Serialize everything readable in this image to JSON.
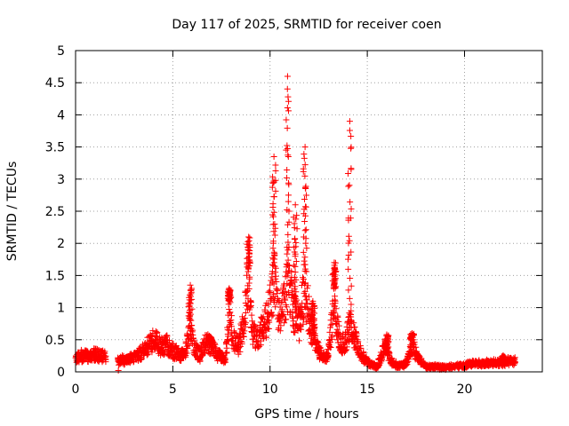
{
  "chart_data": {
    "type": "scatter",
    "title": "Day 117 of 2025, SRMTID for receiver coen",
    "xlabel": "GPS time / hours",
    "ylabel": "SRMTID / TECUs",
    "xlim": [
      0,
      24
    ],
    "ylim": [
      0,
      5
    ],
    "xticks": [
      0,
      5,
      10,
      15,
      20
    ],
    "yticks": [
      0,
      0.5,
      1,
      1.5,
      2,
      2.5,
      3,
      3.5,
      4,
      4.5,
      5
    ],
    "xtick_labels": [
      "0",
      "5",
      "10",
      "15",
      "20"
    ],
    "ytick_labels": [
      "0",
      "0.5",
      "1",
      "1.5",
      "2",
      "2.5",
      "3",
      "3.5",
      "4",
      "4.5",
      "5"
    ],
    "grid": true,
    "marker": "+",
    "series": [
      {
        "name": "SRMTID",
        "color": "#ff0000",
        "envelope": [
          [
            0.0,
            0.25
          ],
          [
            0.2,
            0.28
          ],
          [
            0.5,
            0.3
          ],
          [
            0.8,
            0.28
          ],
          [
            1.0,
            0.32
          ],
          [
            1.3,
            0.3
          ],
          [
            1.5,
            0.28
          ],
          [
            2.2,
            0.2
          ],
          [
            2.5,
            0.22
          ],
          [
            3.0,
            0.25
          ],
          [
            3.4,
            0.35
          ],
          [
            3.8,
            0.5
          ],
          [
            4.1,
            0.6
          ],
          [
            4.4,
            0.45
          ],
          [
            4.7,
            0.5
          ],
          [
            4.9,
            0.4
          ],
          [
            5.2,
            0.35
          ],
          [
            5.6,
            0.28
          ],
          [
            5.9,
            0.8
          ],
          [
            6.1,
            0.45
          ],
          [
            6.4,
            0.3
          ],
          [
            6.7,
            0.55
          ],
          [
            7.0,
            0.45
          ],
          [
            7.4,
            0.3
          ],
          [
            7.7,
            0.2
          ],
          [
            7.9,
            1.1
          ],
          [
            8.1,
            0.6
          ],
          [
            8.4,
            0.5
          ],
          [
            8.6,
            0.8
          ],
          [
            8.9,
            1.6
          ],
          [
            9.1,
            0.7
          ],
          [
            9.3,
            0.6
          ],
          [
            9.6,
            0.8
          ],
          [
            9.9,
            1.05
          ],
          [
            10.2,
            1.7
          ],
          [
            10.5,
            0.95
          ],
          [
            10.8,
            1.3
          ],
          [
            10.95,
            1.8
          ],
          [
            11.2,
            1.1
          ],
          [
            11.5,
            0.85
          ],
          [
            11.8,
            1.6
          ],
          [
            12.1,
            0.8
          ],
          [
            12.4,
            0.45
          ],
          [
            12.7,
            0.25
          ],
          [
            13.0,
            0.3
          ],
          [
            13.3,
            1.3
          ],
          [
            13.6,
            0.5
          ],
          [
            13.9,
            0.55
          ],
          [
            14.1,
            0.85
          ],
          [
            14.4,
            0.6
          ],
          [
            14.7,
            0.3
          ],
          [
            15.1,
            0.15
          ],
          [
            15.5,
            0.1
          ],
          [
            15.9,
            0.45
          ],
          [
            16.2,
            0.2
          ],
          [
            16.6,
            0.1
          ],
          [
            17.0,
            0.15
          ],
          [
            17.3,
            0.5
          ],
          [
            17.6,
            0.25
          ],
          [
            18.0,
            0.1
          ],
          [
            18.5,
            0.1
          ],
          [
            19.0,
            0.08
          ],
          [
            19.5,
            0.1
          ],
          [
            20.0,
            0.12
          ],
          [
            20.5,
            0.15
          ],
          [
            21.0,
            0.15
          ],
          [
            21.5,
            0.17
          ],
          [
            22.0,
            0.18
          ],
          [
            22.3,
            0.2
          ],
          [
            22.6,
            0.2
          ]
        ],
        "spikes": [
          [
            5.9,
            1.35
          ],
          [
            6.9,
            0.55
          ],
          [
            7.9,
            1.3
          ],
          [
            8.9,
            2.1
          ],
          [
            10.2,
            3.35
          ],
          [
            10.9,
            4.6
          ],
          [
            11.3,
            2.6
          ],
          [
            11.8,
            3.5
          ],
          [
            12.2,
            1.1
          ],
          [
            13.3,
            1.7
          ],
          [
            14.1,
            3.9
          ],
          [
            16.0,
            0.58
          ],
          [
            17.3,
            0.6
          ],
          [
            22.0,
            0.25
          ]
        ],
        "outliers": [
          [
            2.2,
            0.02
          ]
        ]
      }
    ]
  }
}
